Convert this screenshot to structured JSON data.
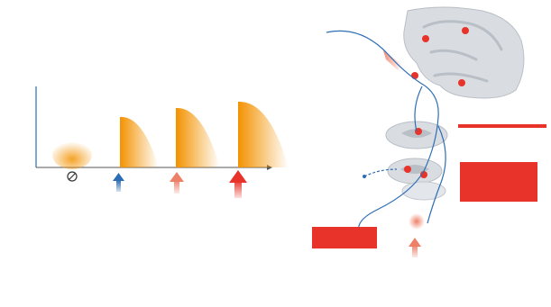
{
  "colors": {
    "orange": "#f39200",
    "red_accent": "#e8332a",
    "salmon": "#ef8068",
    "blue_axis": "#2d6db5",
    "tissue_grey": "#d9dde2",
    "tissue_dark": "#b9bfc6"
  },
  "left_panel": {
    "heading_1": "",
    "line_1a": "",
    "line_1b": "",
    "heading_2": "",
    "line_2a": "",
    "line_2b": "",
    "y_axis_label": "",
    "x_axis_label_1": "",
    "x_axis_label_2": "",
    "no_stimulus_icon": "prohibited-icon",
    "arrow_icons": [
      "arrow-up-icon",
      "arrow-up-icon",
      "arrow-up-icon"
    ],
    "bottom_heading": "",
    "bottom_line_1": "",
    "bottom_line_2": ""
  },
  "right_panel": {
    "brain_label_1": "",
    "brain_label_2": "",
    "brain_label_3": "",
    "box_top_right": "",
    "box_mid_right_1": "",
    "box_mid_right_2": "",
    "box_mid_right_3": "",
    "box_mid_right_4": "",
    "box_left_1": "",
    "box_left_2": "",
    "bottom_label_1": "",
    "bottom_label_2": "",
    "bottom_label_3": "",
    "bottom_label_4": ""
  }
}
